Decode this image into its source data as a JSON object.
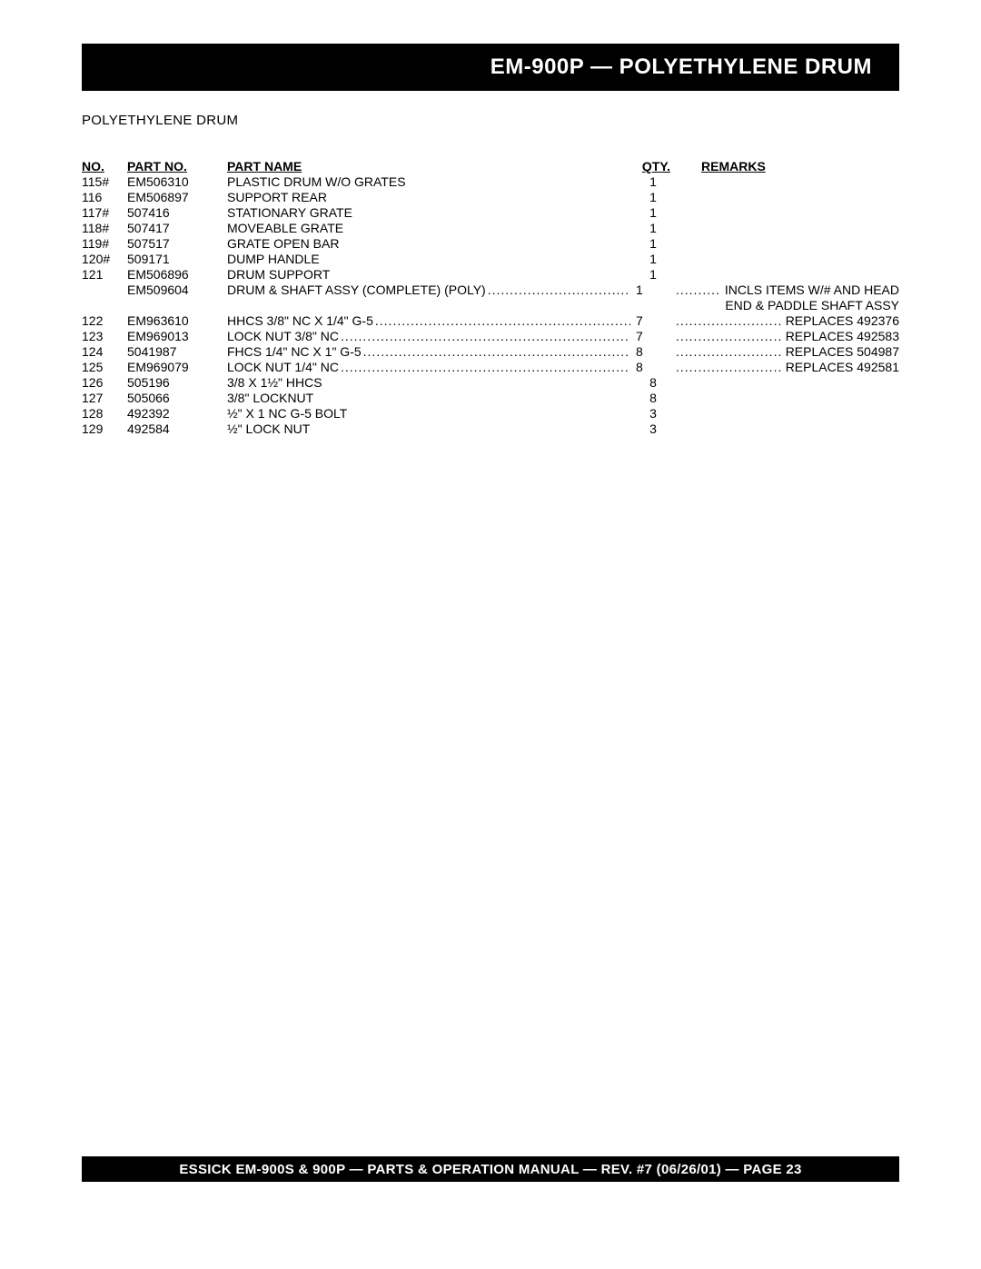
{
  "header": {
    "title": "EM-900P — POLYETHYLENE DRUM"
  },
  "subtitle": "POLYETHYLENE DRUM",
  "columns": {
    "no": "NO.",
    "part_no": "PART NO.",
    "part_name": "PART NAME",
    "qty": "QTY.",
    "remarks": "REMARKS"
  },
  "rows": [
    {
      "no": "115#",
      "part_no": "EM506310",
      "part_name": "PLASTIC DRUM W/O GRATES",
      "qty": "1",
      "remarks": "",
      "dots_name": false,
      "dots_rem": false
    },
    {
      "no": "116",
      "part_no": "EM506897",
      "part_name": "SUPPORT REAR",
      "qty": "1",
      "remarks": "",
      "dots_name": false,
      "dots_rem": false
    },
    {
      "no": "117#",
      "part_no": "507416",
      "part_name": "STATIONARY GRATE",
      "qty": "1",
      "remarks": "",
      "dots_name": false,
      "dots_rem": false
    },
    {
      "no": "118#",
      "part_no": "507417",
      "part_name": "MOVEABLE GRATE",
      "qty": "1",
      "remarks": "",
      "dots_name": false,
      "dots_rem": false
    },
    {
      "no": "119#",
      "part_no": "507517",
      "part_name": "GRATE OPEN BAR",
      "qty": "1",
      "remarks": "",
      "dots_name": false,
      "dots_rem": false
    },
    {
      "no": "120#",
      "part_no": "509171",
      "part_name": "DUMP HANDLE",
      "qty": "1",
      "remarks": "",
      "dots_name": false,
      "dots_rem": false
    },
    {
      "no": "121",
      "part_no": "EM506896",
      "part_name": "DRUM SUPPORT",
      "qty": "1",
      "remarks": "",
      "dots_name": false,
      "dots_rem": false
    },
    {
      "no": "",
      "part_no": "EM509604",
      "part_name": "DRUM & SHAFT ASSY (COMPLETE) (POLY)",
      "qty": "1",
      "remarks": "INCLS ITEMS W/#  AND HEAD",
      "dots_name": true,
      "dots_rem": true
    },
    {
      "no": "",
      "part_no": "",
      "part_name": "",
      "qty": "",
      "remarks": "END & PADDLE SHAFT ASSY",
      "dots_name": false,
      "dots_rem": false,
      "rem_only": true
    },
    {
      "no": "122",
      "part_no": "EM963610",
      "part_name": "HHCS 3/8\" NC X 1/4\" G-5",
      "qty": "7",
      "remarks": "REPLACES 492376",
      "dots_name": true,
      "dots_rem": true
    },
    {
      "no": "123",
      "part_no": "EM969013",
      "part_name": "LOCK NUT 3/8\" NC",
      "qty": "7",
      "remarks": "REPLACES 492583",
      "dots_name": true,
      "dots_rem": true
    },
    {
      "no": "124",
      "part_no": "5041987",
      "part_name": "FHCS 1/4\" NC X 1\" G-5",
      "qty": "8",
      "remarks": "REPLACES 504987",
      "dots_name": true,
      "dots_rem": true
    },
    {
      "no": "125",
      "part_no": "EM969079",
      "part_name": "LOCK NUT 1/4\" NC",
      "qty": "8",
      "remarks": "REPLACES 492581",
      "dots_name": true,
      "dots_rem": true
    },
    {
      "no": "126",
      "part_no": "505196",
      "part_name": "3/8 X 1½\" HHCS",
      "qty": "8",
      "remarks": "",
      "dots_name": false,
      "dots_rem": false
    },
    {
      "no": "127",
      "part_no": "505066",
      "part_name": "3/8\" LOCKNUT",
      "qty": "8",
      "remarks": "",
      "dots_name": false,
      "dots_rem": false
    },
    {
      "no": "128",
      "part_no": "492392",
      "part_name": "½\" X 1 NC G-5 BOLT",
      "qty": "3",
      "remarks": "",
      "dots_name": false,
      "dots_rem": false
    },
    {
      "no": "129",
      "part_no": "492584",
      "part_name": "½\" LOCK NUT",
      "qty": "3",
      "remarks": "",
      "dots_name": false,
      "dots_rem": false
    }
  ],
  "dot_fill": "........................................................................................................................................................",
  "footer": "ESSICK EM-900S & 900P — PARTS & OPERATION MANUAL — REV. #7 (06/26/01) — PAGE 23"
}
